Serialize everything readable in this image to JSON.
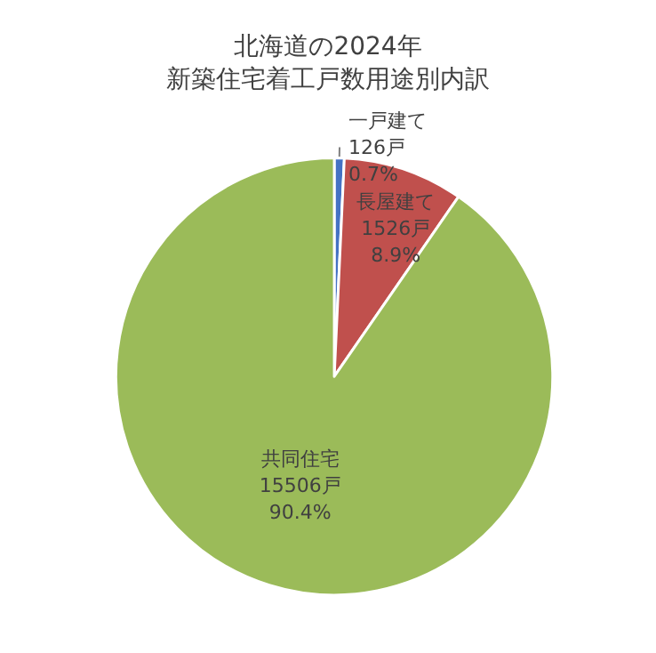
{
  "chart_data": {
    "type": "pie",
    "title": "北海道の2024年",
    "subtitle": "新築住宅着工戸数用途別内訳",
    "categories": [
      "一戸建て",
      "長屋建て",
      "共同住宅"
    ],
    "values": [
      126,
      1526,
      15506
    ],
    "colors": [
      "#4472c4",
      "#c0504d",
      "#9bbb59"
    ],
    "value_labels": [
      "126戸\n0.7%",
      "1526戸\n8.9%",
      "15506戸\n90.4%"
    ],
    "legend": false
  }
}
